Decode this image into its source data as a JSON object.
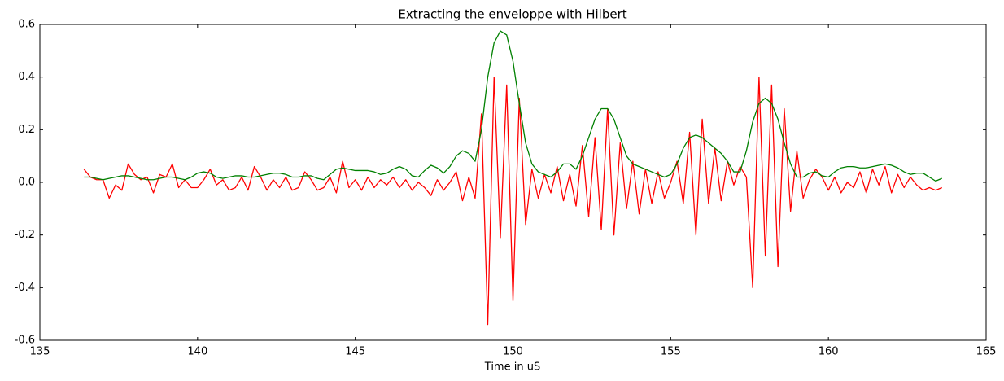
{
  "chart_data": {
    "type": "line",
    "title": "Extracting the enveloppe with Hilbert",
    "x_label": "Time in uS",
    "x": [
      136.4,
      136.6,
      136.8,
      137.0,
      137.2,
      137.4,
      137.6,
      137.8,
      138.0,
      138.2,
      138.4,
      138.6,
      138.8,
      139.0,
      139.2,
      139.4,
      139.6,
      139.8,
      140.0,
      140.2,
      140.4,
      140.6,
      140.8,
      141.0,
      141.2,
      141.4,
      141.6,
      141.8,
      142.0,
      142.2,
      142.4,
      142.6,
      142.8,
      143.0,
      143.2,
      143.4,
      143.6,
      143.8,
      144.0,
      144.2,
      144.4,
      144.6,
      144.8,
      145.0,
      145.2,
      145.4,
      145.6,
      145.8,
      146.0,
      146.2,
      146.4,
      146.6,
      146.8,
      147.0,
      147.2,
      147.4,
      147.6,
      147.8,
      148.0,
      148.2,
      148.4,
      148.6,
      148.8,
      149.0,
      149.2,
      149.4,
      149.6,
      149.8,
      150.0,
      150.2,
      150.4,
      150.6,
      150.8,
      151.0,
      151.2,
      151.4,
      151.6,
      151.8,
      152.0,
      152.2,
      152.4,
      152.6,
      152.8,
      153.0,
      153.2,
      153.4,
      153.6,
      153.8,
      154.0,
      154.2,
      154.4,
      154.6,
      154.8,
      155.0,
      155.2,
      155.4,
      155.6,
      155.8,
      156.0,
      156.2,
      156.4,
      156.6,
      156.8,
      157.0,
      157.2,
      157.4,
      157.6,
      157.8,
      158.0,
      158.2,
      158.4,
      158.6,
      158.8,
      159.0,
      159.2,
      159.4,
      159.6,
      159.8,
      160.0,
      160.2,
      160.4,
      160.6,
      160.8,
      161.0,
      161.2,
      161.4,
      161.6,
      161.8,
      162.0,
      162.2,
      162.4,
      162.6,
      162.8,
      163.0,
      163.2,
      163.4,
      163.6
    ],
    "series": [
      {
        "color": "#ff0000",
        "values": [
          0.05,
          0.02,
          0.01,
          0.01,
          -0.06,
          -0.01,
          -0.03,
          0.07,
          0.03,
          0.01,
          0.02,
          -0.04,
          0.03,
          0.02,
          0.07,
          -0.02,
          0.01,
          -0.02,
          -0.02,
          0.01,
          0.05,
          -0.01,
          0.01,
          -0.03,
          -0.02,
          0.02,
          -0.03,
          0.06,
          0.02,
          -0.03,
          0.01,
          -0.02,
          0.02,
          -0.03,
          -0.02,
          0.04,
          0.01,
          -0.03,
          -0.02,
          0.02,
          -0.04,
          0.08,
          -0.02,
          0.01,
          -0.03,
          0.02,
          -0.02,
          0.01,
          -0.01,
          0.02,
          -0.02,
          0.01,
          -0.03,
          0.0,
          -0.02,
          -0.05,
          0.01,
          -0.03,
          0.0,
          0.04,
          -0.07,
          0.02,
          -0.06,
          0.26,
          -0.54,
          0.4,
          -0.21,
          0.37,
          -0.45,
          0.32,
          -0.16,
          0.05,
          -0.06,
          0.03,
          -0.04,
          0.06,
          -0.07,
          0.03,
          -0.09,
          0.14,
          -0.13,
          0.17,
          -0.18,
          0.28,
          -0.2,
          0.15,
          -0.1,
          0.08,
          -0.12,
          0.05,
          -0.08,
          0.04,
          -0.06,
          0.0,
          0.08,
          -0.08,
          0.19,
          -0.2,
          0.24,
          -0.08,
          0.13,
          -0.07,
          0.08,
          -0.01,
          0.06,
          0.02,
          -0.4,
          0.4,
          -0.28,
          0.37,
          -0.32,
          0.28,
          -0.11,
          0.12,
          -0.06,
          0.01,
          0.05,
          0.02,
          -0.03,
          0.02,
          -0.04,
          0.0,
          -0.02,
          0.04,
          -0.04,
          0.05,
          -0.01,
          0.06,
          -0.04,
          0.03,
          -0.02,
          0.02,
          -0.01,
          -0.03,
          -0.02,
          -0.03,
          -0.02
        ]
      },
      {
        "color": "#008000",
        "values": [
          0.02,
          0.02,
          0.015,
          0.01,
          0.015,
          0.02,
          0.025,
          0.025,
          0.02,
          0.015,
          0.01,
          0.01,
          0.015,
          0.02,
          0.02,
          0.015,
          0.01,
          0.02,
          0.035,
          0.04,
          0.035,
          0.02,
          0.015,
          0.02,
          0.025,
          0.025,
          0.02,
          0.02,
          0.025,
          0.03,
          0.035,
          0.035,
          0.03,
          0.02,
          0.02,
          0.025,
          0.025,
          0.015,
          0.01,
          0.03,
          0.05,
          0.055,
          0.05,
          0.045,
          0.045,
          0.045,
          0.04,
          0.03,
          0.035,
          0.05,
          0.06,
          0.05,
          0.025,
          0.02,
          0.045,
          0.065,
          0.055,
          0.035,
          0.06,
          0.1,
          0.12,
          0.11,
          0.08,
          0.2,
          0.4,
          0.53,
          0.575,
          0.56,
          0.46,
          0.3,
          0.15,
          0.07,
          0.04,
          0.03,
          0.02,
          0.04,
          0.07,
          0.07,
          0.05,
          0.1,
          0.17,
          0.24,
          0.28,
          0.28,
          0.24,
          0.17,
          0.1,
          0.07,
          0.06,
          0.05,
          0.04,
          0.03,
          0.02,
          0.03,
          0.07,
          0.13,
          0.17,
          0.18,
          0.17,
          0.15,
          0.13,
          0.11,
          0.08,
          0.04,
          0.04,
          0.12,
          0.23,
          0.3,
          0.32,
          0.3,
          0.24,
          0.15,
          0.07,
          0.02,
          0.02,
          0.035,
          0.04,
          0.025,
          0.02,
          0.04,
          0.055,
          0.06,
          0.06,
          0.055,
          0.055,
          0.06,
          0.065,
          0.07,
          0.065,
          0.055,
          0.04,
          0.03,
          0.035,
          0.035,
          0.02,
          0.005,
          0.015
        ]
      }
    ],
    "xlim": [
      135,
      165
    ],
    "xticks": [
      135,
      140,
      145,
      150,
      155,
      160,
      165
    ],
    "ylim": [
      -0.6,
      0.6
    ],
    "yticks": [
      -0.6,
      -0.4,
      -0.2,
      {
        "value": 0,
        "label": "0.0"
      },
      0.2,
      0.4,
      0.6
    ],
    "grid": false
  }
}
